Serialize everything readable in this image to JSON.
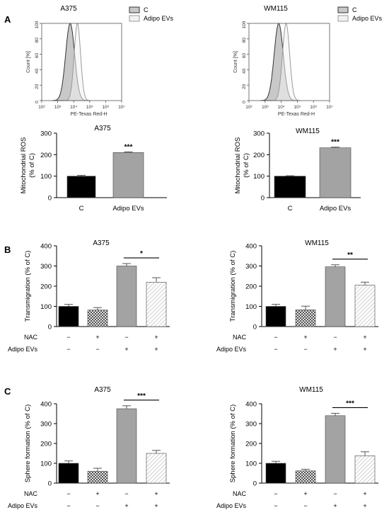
{
  "panels": [
    "A",
    "B",
    "C"
  ],
  "chart_data": [
    {
      "id": "a-hist-a375",
      "type": "area",
      "title": "A375",
      "xlabel": "PE-Texas Red-H",
      "ylabel": "Count [%]",
      "xscale": "log",
      "xlim": [
        100,
        10000000
      ],
      "ylim": [
        0,
        100
      ],
      "x_ticks": [
        "10²",
        "10³",
        "10⁴",
        "10⁵",
        "10⁶",
        "10⁷"
      ],
      "y_ticks": [
        "0",
        "20",
        "40",
        "60",
        "80",
        "100"
      ],
      "legend_position": "top-right",
      "series": [
        {
          "name": "C",
          "peak_x": 6000,
          "width_decades": 0.28,
          "fill": "#c8c8c8",
          "stroke": "#333333"
        },
        {
          "name": "Adipo EVs",
          "peak_x": 17000,
          "width_decades": 0.2,
          "fill": "#f2f2f2",
          "stroke": "#9a9a9a"
        }
      ]
    },
    {
      "id": "a-hist-wm115",
      "type": "area",
      "title": "WM115",
      "xlabel": "PE-Texas Red-H",
      "ylabel": "Count [%]",
      "xscale": "log",
      "xlim": [
        100,
        10000000
      ],
      "ylim": [
        0,
        100
      ],
      "x_ticks": [
        "10²",
        "10³",
        "10⁴",
        "10⁵",
        "10⁶",
        "10⁷"
      ],
      "y_ticks": [
        "0",
        "20",
        "40",
        "60",
        "80",
        "100"
      ],
      "legend_position": "top-right",
      "series": [
        {
          "name": "C",
          "peak_x": 7000,
          "width_decades": 0.28,
          "fill": "#c8c8c8",
          "stroke": "#333333"
        },
        {
          "name": "Adipo EVs",
          "peak_x": 20000,
          "width_decades": 0.22,
          "fill": "#f2f2f2",
          "stroke": "#9a9a9a"
        }
      ]
    },
    {
      "id": "a-bar-a375",
      "type": "bar",
      "title": "A375",
      "ylabel": "Mitochondrial ROS (% of C)",
      "ylim": [
        0,
        300
      ],
      "y_ticks": [
        "0",
        "100",
        "200",
        "300"
      ],
      "categories": [
        "C",
        "Adipo EVs"
      ],
      "values": [
        100,
        210
      ],
      "errors": [
        4,
        3
      ],
      "fills": [
        "black",
        "gray"
      ],
      "annotations": [
        {
          "bar": 1,
          "text": "***"
        }
      ]
    },
    {
      "id": "a-bar-wm115",
      "type": "bar",
      "title": "WM115",
      "ylabel": "Mitochondrial ROS (% of C)",
      "ylim": [
        0,
        300
      ],
      "y_ticks": [
        "0",
        "100",
        "200",
        "300"
      ],
      "categories": [
        "C",
        "Adipo EVs"
      ],
      "values": [
        100,
        232
      ],
      "errors": [
        2,
        3
      ],
      "fills": [
        "black",
        "gray"
      ],
      "annotations": [
        {
          "bar": 1,
          "text": "***"
        }
      ]
    },
    {
      "id": "b-bar-a375",
      "type": "bar",
      "title": "A375",
      "ylabel": "Transmigration (% of C)",
      "ylim": [
        0,
        400
      ],
      "y_ticks": [
        "0",
        "100",
        "200",
        "300",
        "400"
      ],
      "values": [
        100,
        82,
        300,
        220
      ],
      "errors": [
        10,
        12,
        12,
        22
      ],
      "fills": [
        "black",
        "checker",
        "gray",
        "hatch"
      ],
      "conditions": [
        {
          "label": "NAC",
          "signs": [
            "−",
            "+",
            "−",
            "+"
          ]
        },
        {
          "label": "Adipo EVs",
          "signs": [
            "−",
            "−",
            "+",
            "+"
          ]
        }
      ],
      "comparison": {
        "from": 2,
        "to": 3,
        "text": "*"
      }
    },
    {
      "id": "b-bar-wm115",
      "type": "bar",
      "title": "WM115",
      "ylabel": "Transmigration (% of C)",
      "ylim": [
        0,
        400
      ],
      "y_ticks": [
        "0",
        "100",
        "200",
        "300",
        "400"
      ],
      "values": [
        100,
        83,
        296,
        205
      ],
      "errors": [
        10,
        18,
        10,
        15
      ],
      "fills": [
        "black",
        "checker",
        "gray",
        "hatch"
      ],
      "conditions": [
        {
          "label": "NAC",
          "signs": [
            "−",
            "+",
            "−",
            "+"
          ]
        },
        {
          "label": "Adipo EVs",
          "signs": [
            "−",
            "−",
            "+",
            "+"
          ]
        }
      ],
      "comparison": {
        "from": 2,
        "to": 3,
        "text": "**"
      }
    },
    {
      "id": "c-bar-a375",
      "type": "bar",
      "title": "A375",
      "ylabel": "Sphere formation (% of C)",
      "ylim": [
        0,
        400
      ],
      "y_ticks": [
        "0",
        "100",
        "200",
        "300",
        "400"
      ],
      "values": [
        100,
        60,
        375,
        150
      ],
      "errors": [
        12,
        15,
        15,
        15
      ],
      "fills": [
        "black",
        "checker",
        "gray",
        "hatch"
      ],
      "conditions": [
        {
          "label": "NAC",
          "signs": [
            "−",
            "+",
            "−",
            "+"
          ]
        },
        {
          "label": "Adipo EVs",
          "signs": [
            "−",
            "−",
            "+",
            "+"
          ]
        }
      ],
      "comparison": {
        "from": 2,
        "to": 3,
        "text": "***"
      }
    },
    {
      "id": "c-bar-wm115",
      "type": "bar",
      "title": "WM115",
      "ylabel": "Sphere formation (% of C)",
      "ylim": [
        0,
        400
      ],
      "y_ticks": [
        "0",
        "100",
        "200",
        "300",
        "400"
      ],
      "values": [
        100,
        62,
        340,
        138
      ],
      "errors": [
        10,
        8,
        12,
        20
      ],
      "fills": [
        "black",
        "checker",
        "gray",
        "hatch"
      ],
      "conditions": [
        {
          "label": "NAC",
          "signs": [
            "−",
            "+",
            "−",
            "+"
          ]
        },
        {
          "label": "Adipo EVs",
          "signs": [
            "−",
            "−",
            "+",
            "+"
          ]
        }
      ],
      "comparison": {
        "from": 2,
        "to": 3,
        "text": "***"
      }
    }
  ]
}
